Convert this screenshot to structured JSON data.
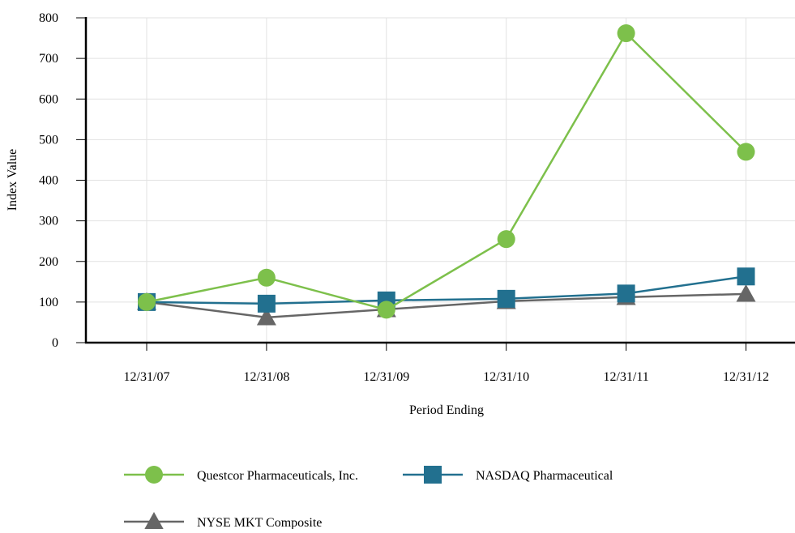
{
  "chart_data": {
    "type": "line",
    "title": "",
    "xlabel": "Period Ending",
    "ylabel": "Index Value",
    "categories": [
      "12/31/07",
      "12/31/08",
      "12/31/09",
      "12/31/10",
      "12/31/11",
      "12/31/12"
    ],
    "ylim": [
      0,
      800
    ],
    "yticks": [
      0,
      100,
      200,
      300,
      400,
      500,
      600,
      700,
      800
    ],
    "grid": true,
    "legend_position": "bottom",
    "series": [
      {
        "name": "Questcor Pharmaceuticals, Inc.",
        "color": "#7dc04b",
        "marker": "circle",
        "values": [
          100,
          160,
          81,
          255,
          762,
          470
        ]
      },
      {
        "name": "NASDAQ Pharmaceutical",
        "color": "#22708f",
        "marker": "square",
        "values": [
          100,
          96,
          104,
          108,
          121,
          163
        ]
      },
      {
        "name": "NYSE MKT Composite",
        "color": "#666666",
        "marker": "triangle",
        "values": [
          100,
          62,
          82,
          102,
          112,
          120
        ]
      }
    ]
  }
}
